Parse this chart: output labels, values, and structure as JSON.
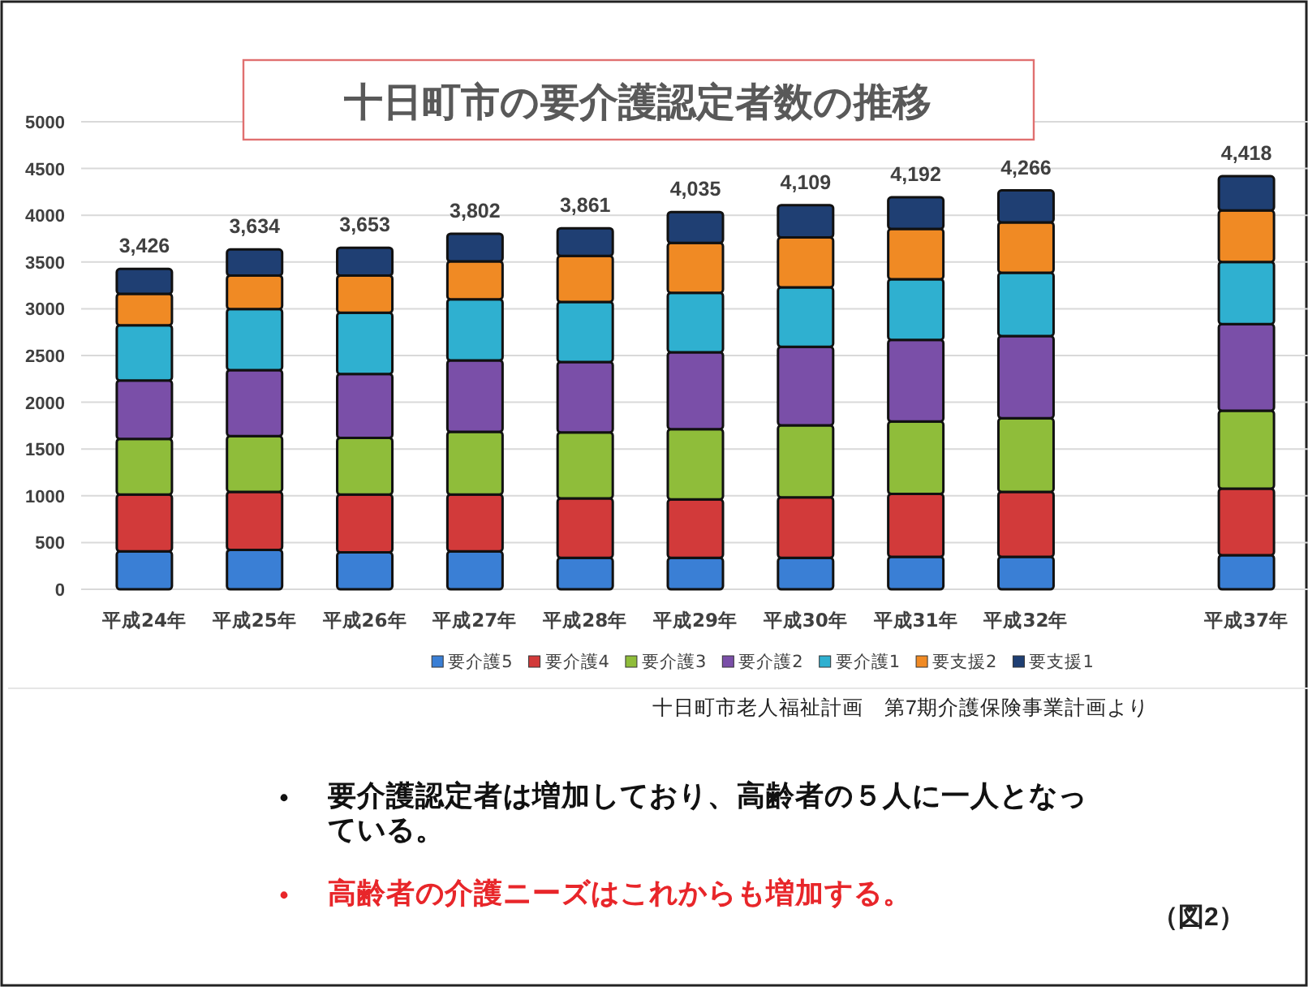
{
  "chart_data": {
    "type": "bar",
    "stacked": true,
    "title": "十日町市の要介護認定者数の推移",
    "categories": [
      "平成24年",
      "平成25年",
      "平成26年",
      "平成27年",
      "平成28年",
      "平成29年",
      "平成30年",
      "平成31年",
      "平成32年",
      null,
      "平成37年"
    ],
    "series": [
      {
        "name": "要介護5",
        "color": "#3a7fd5",
        "values": [
          405,
          422,
          394,
          405,
          336,
          336,
          336,
          347,
          347,
          null,
          365
        ]
      },
      {
        "name": "要介護4",
        "color": "#d23a3a",
        "values": [
          608,
          620,
          619,
          608,
          636,
          625,
          648,
          672,
          695,
          null,
          711
        ]
      },
      {
        "name": "要介護3",
        "color": "#8fbd3a",
        "values": [
          596,
          596,
          607,
          671,
          706,
          752,
          769,
          775,
          787,
          null,
          834
        ]
      },
      {
        "name": "要介護2",
        "color": "#7a4fa8",
        "values": [
          625,
          706,
          683,
          764,
          753,
          822,
          840,
          874,
          879,
          null,
          926
        ]
      },
      {
        "name": "要介護1",
        "color": "#2fb0d0",
        "values": [
          590,
          654,
          654,
          654,
          642,
          636,
          636,
          648,
          677,
          null,
          665
        ]
      },
      {
        "name": "要支援2",
        "color": "#f08a24",
        "values": [
          336,
          358,
          399,
          405,
          492,
          533,
          533,
          538,
          539,
          null,
          550
        ]
      },
      {
        "name": "要支援1",
        "color": "#1f3f73",
        "values": [
          266,
          278,
          297,
          295,
          296,
          331,
          347,
          338,
          342,
          null,
          367
        ]
      }
    ],
    "totals": [
      "3,426",
      "3,634",
      "3,653",
      "3,802",
      "3,861",
      "4,035",
      "4,109",
      "4,192",
      "4,266",
      null,
      "4,418"
    ],
    "ylim": [
      0,
      5000
    ],
    "yticks": [
      0,
      500,
      1000,
      1500,
      2000,
      2500,
      3000,
      3500,
      4000,
      4500,
      5000
    ],
    "grid": "y",
    "legend": "bottom",
    "annotations": [
      "十日町市老人福祉計画　第7期介護保険事業計画より",
      "要介護認定者は増加しており、高齢者の５人に一人となっている。",
      "高齢者の介護ニーズはこれからも増加する。",
      "（図2）"
    ]
  }
}
